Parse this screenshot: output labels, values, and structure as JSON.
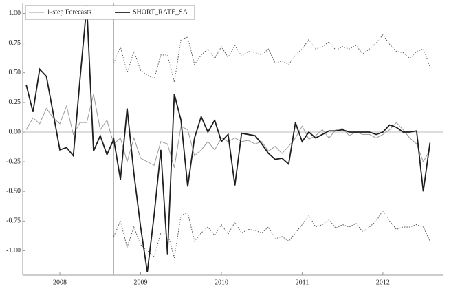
{
  "chart_data": {
    "type": "line",
    "x": [
      2007.583,
      2007.667,
      2007.75,
      2007.833,
      2007.917,
      2008,
      2008.083,
      2008.167,
      2008.25,
      2008.333,
      2008.417,
      2008.5,
      2008.583,
      2008.667,
      2008.75,
      2008.833,
      2008.917,
      2009,
      2009.083,
      2009.167,
      2009.25,
      2009.333,
      2009.417,
      2009.5,
      2009.583,
      2009.667,
      2009.75,
      2009.833,
      2009.917,
      2010,
      2010.083,
      2010.167,
      2010.25,
      2010.333,
      2010.417,
      2010.5,
      2010.583,
      2010.667,
      2010.75,
      2010.833,
      2010.917,
      2011,
      2011.083,
      2011.167,
      2011.25,
      2011.333,
      2011.417,
      2011.5,
      2011.583,
      2011.667,
      2011.75,
      2011.833,
      2011.917,
      2012,
      2012.083,
      2012.167,
      2012.25,
      2012.333,
      2012.417,
      2012.5,
      2012.583
    ],
    "series": [
      {
        "name": "1-step Forecasts",
        "color": "#9a9a9a",
        "values": [
          0.02,
          0.12,
          0.07,
          0.2,
          0.12,
          0.07,
          0.22,
          -0.02,
          0.08,
          0.08,
          0.32,
          0.02,
          0.1,
          -0.1,
          -0.05,
          -0.25,
          -0.05,
          -0.22,
          -0.25,
          -0.28,
          -0.08,
          -0.1,
          -0.3,
          0.05,
          0.02,
          -0.2,
          -0.15,
          -0.08,
          -0.15,
          -0.05,
          -0.08,
          -0.05,
          -0.08,
          -0.07,
          -0.1,
          -0.08,
          -0.16,
          -0.12,
          -0.18,
          -0.12,
          -0.05,
          0.05,
          -0.06,
          -0.03,
          0.02,
          -0.05,
          0.02,
          0.03,
          -0.03,
          0,
          -0.02,
          -0.02,
          -0.05,
          -0.02,
          0.02,
          0.08,
          0.02,
          -0.05,
          -0.1,
          -0.25,
          -0.15
        ]
      },
      {
        "name": "SHORT_RATE_SA",
        "color": "#1e1e1e",
        "values": [
          0.4,
          0.17,
          0.53,
          0.47,
          0.16,
          -0.15,
          -0.13,
          -0.2,
          0.45,
          1.07,
          -0.16,
          -0.03,
          -0.19,
          -0.06,
          -0.4,
          0.2,
          -0.35,
          -0.8,
          -1.18,
          -0.7,
          -0.15,
          -1.03,
          0.32,
          0.1,
          -0.46,
          -0.05,
          0.13,
          0,
          0.1,
          -0.08,
          -0.02,
          -0.45,
          -0.01,
          -0.02,
          -0.03,
          -0.1,
          -0.18,
          -0.23,
          -0.22,
          -0.27,
          0.08,
          -0.08,
          0,
          -0.05,
          -0.02,
          0.01,
          0.01,
          0.02,
          0,
          0,
          0,
          0,
          -0.02,
          0,
          0.06,
          0.04,
          0,
          0,
          0.01,
          -0.5,
          -0.09
        ]
      },
      {
        "color": "#555555",
        "dash": true,
        "values": [
          null,
          null,
          null,
          null,
          null,
          null,
          null,
          null,
          null,
          null,
          null,
          null,
          null,
          0.58,
          0.72,
          0.5,
          0.68,
          0.52,
          0.48,
          0.45,
          0.65,
          0.65,
          0.42,
          0.78,
          0.8,
          0.57,
          0.65,
          0.7,
          0.62,
          0.72,
          0.63,
          0.73,
          0.64,
          0.68,
          0.67,
          0.65,
          0.7,
          0.58,
          0.6,
          0.57,
          0.65,
          0.7,
          0.78,
          0.7,
          0.72,
          0.76,
          0.69,
          0.72,
          0.7,
          0.73,
          0.66,
          0.7,
          0.75,
          0.82,
          0.74,
          0.68,
          0.67,
          0.62,
          0.68,
          0.7,
          0.55
        ]
      },
      {
        "color": "#555555",
        "dash": true,
        "values": [
          null,
          null,
          null,
          null,
          null,
          null,
          null,
          null,
          null,
          null,
          null,
          null,
          null,
          -0.88,
          -0.75,
          -0.97,
          -0.8,
          -0.95,
          -1.0,
          -1.05,
          -0.85,
          -0.85,
          -1.06,
          -0.7,
          -0.68,
          -0.92,
          -0.85,
          -0.8,
          -0.87,
          -0.78,
          -0.86,
          -0.76,
          -0.85,
          -0.82,
          -0.83,
          -0.85,
          -0.8,
          -0.9,
          -0.88,
          -0.92,
          -0.85,
          -0.78,
          -0.7,
          -0.8,
          -0.78,
          -0.74,
          -0.81,
          -0.78,
          -0.8,
          -0.77,
          -0.84,
          -0.8,
          -0.75,
          -0.66,
          -0.75,
          -0.82,
          -0.8,
          -0.8,
          -0.78,
          -0.8,
          -0.92
        ]
      }
    ],
    "xlim": [
      2007.54,
      2012.75
    ],
    "xticks": [
      2008,
      2009,
      2010,
      2011,
      2012
    ],
    "ylim": [
      -1.206,
      1.084
    ],
    "yticks": [
      {
        "value": -1,
        "label": "-1.00"
      },
      {
        "value": -0.75,
        "label": "-0.75"
      },
      {
        "value": -0.5,
        "label": "-0.50"
      },
      {
        "value": -0.25,
        "label": "-0.25"
      },
      {
        "value": 0,
        "label": "0.00"
      },
      {
        "value": 0.25,
        "label": "0.25"
      },
      {
        "value": 0.5,
        "label": "0.50"
      },
      {
        "value": 0.75,
        "label": "0.75"
      },
      {
        "value": 1,
        "label": "1.00"
      }
    ],
    "legend": "top-left"
  }
}
